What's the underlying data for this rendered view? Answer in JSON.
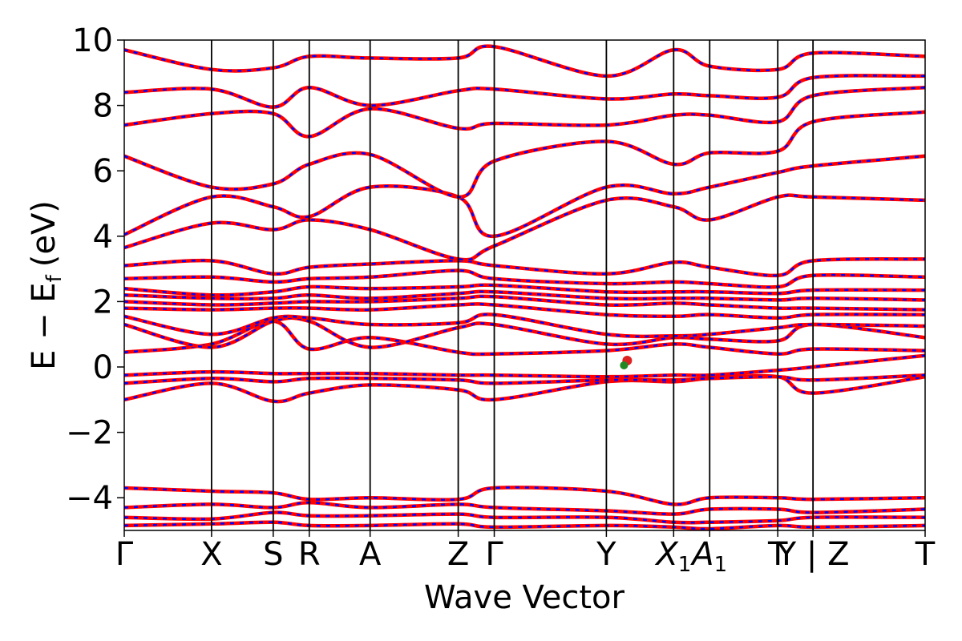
{
  "chart_data": {
    "type": "line",
    "xlabel": "Wave Vector",
    "ylabel_main": "E − E",
    "ylabel_sub": "f",
    "ylabel_unit": "(eV)",
    "ylim": [
      -5,
      10
    ],
    "yticks": [
      {
        "value": 10,
        "label": "10"
      },
      {
        "value": 8,
        "label": "8"
      },
      {
        "value": 6,
        "label": "6"
      },
      {
        "value": 4,
        "label": "4"
      },
      {
        "value": 2,
        "label": "2"
      },
      {
        "value": 0,
        "label": "0"
      },
      {
        "value": -2,
        "label": "−2"
      },
      {
        "value": -4,
        "label": "−4"
      }
    ],
    "kpoints": [
      {
        "label": "Γ",
        "sub": "",
        "k": 0.0
      },
      {
        "label": "X",
        "sub": "",
        "k": 1.09
      },
      {
        "label": "S",
        "sub": "",
        "k": 1.86
      },
      {
        "label": "R",
        "sub": "",
        "k": 2.31
      },
      {
        "label": "A",
        "sub": "",
        "k": 3.07
      },
      {
        "label": "Z",
        "sub": "",
        "k": 4.17
      },
      {
        "label": "Γ",
        "sub": "",
        "k": 4.62
      },
      {
        "label": "Y",
        "sub": "",
        "k": 6.02
      },
      {
        "label": "X",
        "sub": "1",
        "k": 6.86
      },
      {
        "label": "A",
        "sub": "1",
        "k": 7.31
      },
      {
        "label": "T",
        "sub": "",
        "k": 8.16
      },
      {
        "label": "Y | Z",
        "sub": "",
        "k": 8.6
      },
      {
        "label": "T",
        "sub": "",
        "k": 10.0
      }
    ],
    "series_colors": {
      "band_a": "#ff0000",
      "band_b": "#0000ff"
    },
    "marker": {
      "k": 6.24,
      "E": 0.05,
      "color_outer": "#dd2222",
      "color_inner": "#228822"
    },
    "bands": [
      {
        "k": [
          0,
          1.09,
          1.86,
          2.31,
          3.07,
          4.17,
          4.62,
          6.02,
          6.86,
          7.31,
          8.16,
          8.6,
          10
        ],
        "E": [
          -1.0,
          -0.5,
          -1.05,
          -0.8,
          -0.55,
          -0.7,
          -1.0,
          -0.45,
          -0.45,
          -0.35,
          -0.3,
          -0.8,
          -0.3
        ]
      },
      {
        "k": [
          0,
          1.09,
          1.86,
          2.31,
          3.07,
          4.17,
          4.62,
          6.02,
          6.86,
          7.31,
          8.16,
          8.6,
          10
        ],
        "E": [
          -0.5,
          -0.35,
          -0.45,
          -0.35,
          -0.35,
          -0.4,
          -0.5,
          -0.4,
          -0.4,
          -0.35,
          -0.3,
          -0.4,
          -0.25
        ]
      },
      {
        "k": [
          0,
          1.09,
          1.86,
          2.31,
          3.07,
          4.17,
          4.62,
          6.02,
          6.86,
          7.31,
          8.16,
          8.6,
          10
        ],
        "E": [
          -0.25,
          -0.15,
          -0.2,
          -0.2,
          -0.2,
          -0.25,
          -0.25,
          -0.3,
          -0.25,
          -0.25,
          -0.1,
          0.0,
          0.35
        ]
      },
      {
        "k": [
          0,
          1.09,
          1.86,
          2.31,
          3.07,
          4.17,
          4.62,
          6.02,
          6.86,
          7.31,
          8.16,
          8.6,
          10
        ],
        "E": [
          0.45,
          0.7,
          1.4,
          0.55,
          0.9,
          0.45,
          0.4,
          0.5,
          0.7,
          0.6,
          0.4,
          0.55,
          0.5
        ]
      },
      {
        "k": [
          0,
          1.09,
          1.86,
          2.31,
          3.07,
          4.17,
          4.62,
          6.02,
          6.86,
          7.31,
          8.16,
          8.6,
          10
        ],
        "E": [
          1.3,
          0.6,
          1.4,
          1.4,
          0.6,
          1.2,
          1.3,
          0.7,
          0.9,
          0.85,
          0.8,
          1.3,
          0.9
        ]
      },
      {
        "k": [
          0,
          1.09,
          1.86,
          2.31,
          3.07,
          4.17,
          4.62,
          6.02,
          6.86,
          7.31,
          8.16,
          8.6,
          10
        ],
        "E": [
          1.55,
          1.0,
          1.5,
          1.5,
          1.3,
          1.35,
          1.6,
          1.0,
          0.95,
          1.0,
          1.2,
          1.3,
          1.25
        ]
      },
      {
        "k": [
          0,
          1.09,
          1.86,
          2.31,
          3.07,
          4.17,
          4.62,
          6.02,
          6.86,
          7.31,
          8.16,
          8.6,
          10
        ],
        "E": [
          1.8,
          1.75,
          1.8,
          1.8,
          1.75,
          1.9,
          1.9,
          1.6,
          1.55,
          1.6,
          1.5,
          1.6,
          1.6
        ]
      },
      {
        "k": [
          0,
          1.09,
          1.86,
          2.31,
          3.07,
          4.17,
          4.62,
          6.02,
          6.86,
          7.31,
          8.16,
          8.6,
          10
        ],
        "E": [
          2.0,
          1.9,
          1.95,
          2.0,
          2.0,
          2.1,
          2.15,
          1.9,
          1.95,
          1.9,
          1.8,
          1.8,
          1.75
        ]
      },
      {
        "k": [
          0,
          1.09,
          1.86,
          2.31,
          3.07,
          4.17,
          4.62,
          6.02,
          6.86,
          7.31,
          8.16,
          8.6,
          10
        ],
        "E": [
          2.2,
          2.1,
          2.1,
          2.2,
          2.1,
          2.25,
          2.3,
          2.1,
          2.1,
          2.1,
          2.05,
          2.1,
          2.05
        ]
      },
      {
        "k": [
          0,
          1.09,
          1.86,
          2.31,
          3.07,
          4.17,
          4.62,
          6.02,
          6.86,
          7.31,
          8.16,
          8.6,
          10
        ],
        "E": [
          2.4,
          2.2,
          2.3,
          2.45,
          2.4,
          2.45,
          2.5,
          2.3,
          2.3,
          2.3,
          2.25,
          2.35,
          2.35
        ]
      },
      {
        "k": [
          0,
          1.09,
          1.86,
          2.31,
          3.07,
          4.17,
          4.62,
          6.02,
          6.86,
          7.31,
          8.16,
          8.6,
          10
        ],
        "E": [
          2.7,
          2.75,
          2.6,
          2.7,
          2.75,
          2.95,
          2.7,
          2.55,
          2.6,
          2.55,
          2.45,
          2.8,
          2.75
        ]
      },
      {
        "k": [
          0,
          1.09,
          1.86,
          2.31,
          3.07,
          4.17,
          4.62,
          6.02,
          6.86,
          7.31,
          8.16,
          8.6,
          10
        ],
        "E": [
          3.1,
          3.25,
          2.85,
          3.05,
          3.15,
          3.25,
          3.1,
          2.85,
          3.2,
          3.05,
          2.8,
          3.25,
          3.3
        ]
      },
      {
        "k": [
          0,
          1.09,
          1.86,
          2.31,
          3.07,
          4.17,
          4.62,
          6.02,
          6.86,
          7.31,
          8.16,
          8.6,
          10
        ],
        "E": [
          3.65,
          4.4,
          4.2,
          4.5,
          4.2,
          3.3,
          3.7,
          5.1,
          4.9,
          4.5,
          5.2,
          5.2,
          5.1
        ]
      },
      {
        "k": [
          0,
          1.09,
          1.86,
          2.31,
          3.07,
          4.17,
          4.62,
          6.02,
          6.86,
          7.31,
          8.16,
          8.6,
          10
        ],
        "E": [
          4.05,
          5.2,
          4.9,
          4.6,
          5.5,
          5.2,
          4.0,
          5.5,
          5.3,
          5.5,
          5.95,
          6.15,
          6.45
        ]
      },
      {
        "k": [
          0,
          1.09,
          1.86,
          2.31,
          3.07,
          4.17,
          4.62,
          6.02,
          6.86,
          7.31,
          8.16,
          8.6,
          10
        ],
        "E": [
          6.45,
          5.5,
          5.6,
          6.2,
          6.5,
          5.2,
          6.3,
          6.9,
          6.2,
          6.55,
          6.6,
          7.5,
          7.8
        ]
      },
      {
        "k": [
          0,
          1.09,
          1.86,
          2.31,
          3.07,
          4.17,
          4.62,
          6.02,
          6.86,
          7.31,
          8.16,
          8.6,
          10
        ],
        "E": [
          7.4,
          7.75,
          7.75,
          7.05,
          7.9,
          7.3,
          7.45,
          7.4,
          7.7,
          7.7,
          7.5,
          8.3,
          8.55
        ]
      },
      {
        "k": [
          0,
          1.09,
          1.86,
          2.31,
          3.07,
          4.17,
          4.62,
          6.02,
          6.86,
          7.31,
          8.16,
          8.6,
          10
        ],
        "E": [
          8.4,
          8.5,
          7.95,
          8.55,
          8.0,
          8.45,
          8.5,
          8.2,
          8.35,
          8.3,
          8.25,
          8.85,
          8.9
        ]
      },
      {
        "k": [
          0,
          1.09,
          1.86,
          2.31,
          3.07,
          4.17,
          4.62,
          6.02,
          6.86,
          7.31,
          8.16,
          8.6,
          10
        ],
        "E": [
          9.7,
          9.1,
          9.15,
          9.5,
          9.45,
          9.45,
          9.8,
          8.9,
          9.7,
          9.2,
          9.1,
          9.6,
          9.5
        ]
      },
      {
        "k": [
          0,
          1.09,
          1.86,
          2.31,
          3.07,
          4.17,
          4.62,
          6.02,
          6.86,
          7.31,
          8.16,
          8.6,
          10
        ],
        "E": [
          -3.7,
          -3.8,
          -3.85,
          -4.05,
          -4.0,
          -4.05,
          -3.7,
          -3.8,
          -4.2,
          -4.0,
          -4.0,
          -4.05,
          -4.0
        ]
      },
      {
        "k": [
          0,
          1.09,
          1.86,
          2.31,
          3.07,
          4.17,
          4.62,
          6.02,
          6.86,
          7.31,
          8.16,
          8.6,
          10
        ],
        "E": [
          -4.3,
          -4.2,
          -4.3,
          -4.15,
          -4.3,
          -4.2,
          -4.3,
          -4.4,
          -4.5,
          -4.35,
          -4.35,
          -4.45,
          -4.35
        ]
      },
      {
        "k": [
          0,
          1.09,
          1.86,
          2.31,
          3.07,
          4.17,
          4.62,
          6.02,
          6.86,
          7.31,
          8.16,
          8.6,
          10
        ],
        "E": [
          -4.6,
          -4.65,
          -4.45,
          -4.55,
          -4.55,
          -4.5,
          -4.6,
          -4.6,
          -4.75,
          -4.75,
          -4.7,
          -4.6,
          -4.6
        ]
      },
      {
        "k": [
          0,
          1.09,
          1.86,
          2.31,
          3.07,
          4.17,
          4.62,
          6.02,
          6.86,
          7.31,
          8.16,
          8.6,
          10
        ],
        "E": [
          -4.85,
          -4.8,
          -4.75,
          -4.85,
          -4.85,
          -4.8,
          -4.9,
          -4.85,
          -4.9,
          -4.95,
          -4.85,
          -4.9,
          -4.85
        ]
      }
    ]
  }
}
